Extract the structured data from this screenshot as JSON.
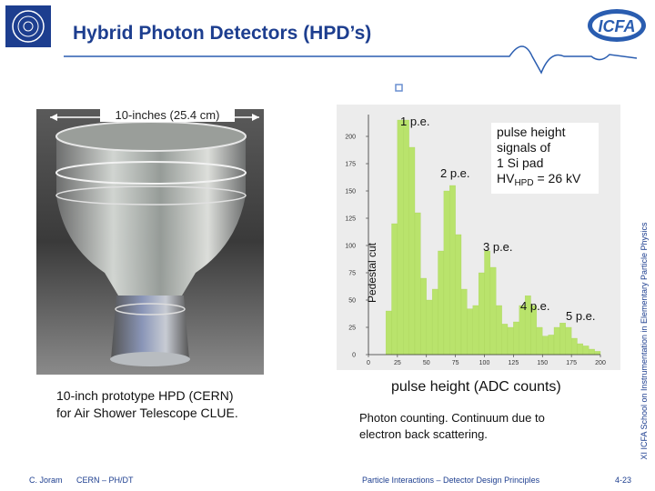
{
  "header": {
    "title": "Hybrid Photon Detectors (HPD’s)",
    "logo_text": "ICFA"
  },
  "photo": {
    "dimension_label": "10-inches (25.4 cm)",
    "caption": [
      "10-inch prototype HPD (CERN)",
      "for Air Shower Telescope CLUE."
    ]
  },
  "chart_data": {
    "type": "histogram",
    "bins": [
      0,
      5,
      10,
      15,
      20,
      25,
      30,
      35,
      40,
      45,
      50,
      55,
      60,
      65,
      70,
      75,
      80,
      85,
      90,
      95,
      100,
      105,
      110,
      115,
      120,
      125,
      130,
      135,
      140,
      145,
      150,
      155,
      160,
      165,
      170,
      175,
      180,
      185,
      190,
      195,
      200
    ],
    "values": [
      0,
      0,
      0,
      40,
      120,
      215,
      215,
      190,
      130,
      70,
      50,
      60,
      95,
      150,
      155,
      110,
      60,
      42,
      45,
      75,
      95,
      80,
      45,
      28,
      25,
      30,
      45,
      54,
      45,
      25,
      17,
      18,
      25,
      29,
      25,
      15,
      10,
      8,
      5,
      3
    ],
    "color": "#b9e36c",
    "xlim": [
      0,
      200
    ],
    "ylim": [
      0,
      220
    ],
    "xticks": [
      0,
      25,
      50,
      75,
      100,
      125,
      150,
      175,
      200
    ],
    "yticks": [
      0,
      25,
      50,
      75,
      100,
      125,
      150,
      175,
      200
    ],
    "xlabel": "pulse height (ADC counts)",
    "pedestal_label": "Pedestal cut",
    "peak_labels": [
      "1 p.e.",
      "2 p.e.",
      "3 p.e.",
      "4 p.e.",
      "5 p.e."
    ],
    "signal_note": [
      "pulse height",
      "signals of",
      "1 Si pad"
    ],
    "hv_label": {
      "main": "HV",
      "sub": "HPD",
      "rest": " = 26 kV"
    }
  },
  "description": [
    "Photon counting. Continuum due to",
    "electron back scattering."
  ],
  "footer": {
    "author": "C. Joram",
    "affiliation": "CERN – PH/DT",
    "course": "Particle Interactions – Detector Design Principles",
    "page": "4-23"
  },
  "sidebar": "XI ICFA School on Instrumentation in Elementary Particle Physics"
}
